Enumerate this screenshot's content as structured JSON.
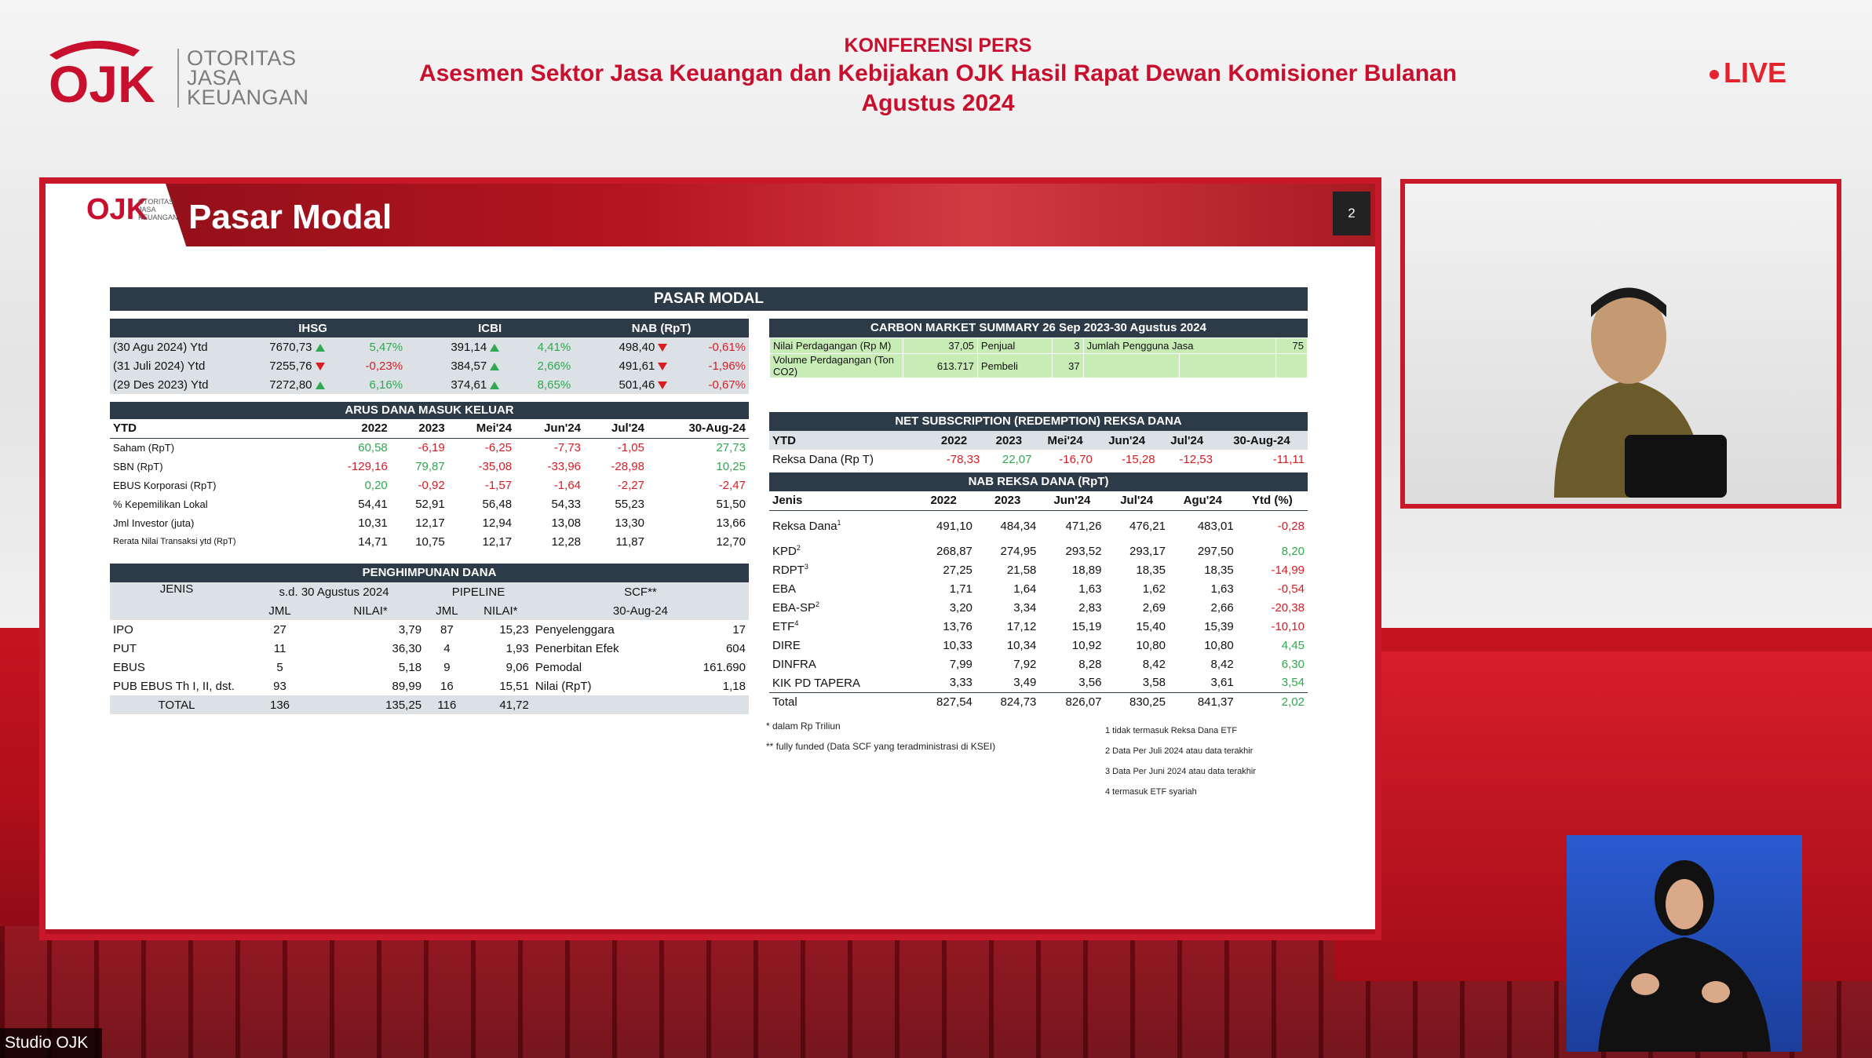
{
  "logo": {
    "mark": "OJK",
    "line1": "OTORITAS",
    "line2": "JASA",
    "line3": "KEUANGAN"
  },
  "header": {
    "title": "KONFERENSI PERS",
    "subtitle1": "Asesmen Sektor Jasa Keuangan dan Kebijakan OJK Hasil Rapat Dewan Komisioner Bulanan",
    "subtitle2": "Agustus 2024"
  },
  "live": "LIVE",
  "studio": "Studio OJK",
  "slide": {
    "title": "Pasar Modal",
    "page": "2",
    "mini_logo": "OJK",
    "mini_sub": "OTORITAS JASA KEUANGAN",
    "banner": "PASAR MODAL",
    "market": {
      "headers": [
        "IHSG",
        "ICBI",
        "NAB (RpT)"
      ],
      "rows": [
        {
          "label": "(30 Agu 2024) Ytd",
          "ihsg": "7670,73",
          "ihsg_pct": "5,47%",
          "ihsg_dir": "up",
          "icbi": "391,14",
          "icbi_pct": "4,41%",
          "icbi_dir": "up",
          "nab": "498,40",
          "nab_pct": "-0,61%",
          "nab_dir": "down"
        },
        {
          "label": "(31 Juli 2024) Ytd",
          "ihsg": "7255,76",
          "ihsg_pct": "-0,23%",
          "ihsg_dir": "down",
          "icbi": "384,57",
          "icbi_pct": "2,66%",
          "icbi_dir": "up",
          "nab": "491,61",
          "nab_pct": "-1,96%",
          "nab_dir": "down"
        },
        {
          "label": "(29 Des 2023) Ytd",
          "ihsg": "7272,80",
          "ihsg_pct": "6,16%",
          "ihsg_dir": "up",
          "icbi": "374,61",
          "icbi_pct": "8,65%",
          "icbi_dir": "up",
          "nab": "501,46",
          "nab_pct": "-0,67%",
          "nab_dir": "down"
        }
      ]
    },
    "arus": {
      "title": "ARUS DANA MASUK KELUAR",
      "cols": [
        "YTD",
        "2022",
        "2023",
        "Mei'24",
        "Jun'24",
        "Jul'24",
        "30-Aug-24"
      ],
      "rows": [
        {
          "label": "Saham (RpT)",
          "v": [
            "60,58",
            "-6,19",
            "-6,25",
            "-7,73",
            "-1,05",
            "27,73"
          ],
          "cls": [
            "g",
            "rd",
            "rd",
            "rd",
            "rd",
            "g"
          ]
        },
        {
          "label": "SBN (RpT)",
          "v": [
            "-129,16",
            "79,87",
            "-35,08",
            "-33,96",
            "-28,98",
            "10,25"
          ],
          "cls": [
            "rd",
            "g",
            "rd",
            "rd",
            "rd",
            "g"
          ]
        },
        {
          "label": "EBUS Korporasi (RpT)",
          "v": [
            "0,20",
            "-0,92",
            "-1,57",
            "-1,64",
            "-2,27",
            "-2,47"
          ],
          "cls": [
            "g",
            "rd",
            "rd",
            "rd",
            "rd",
            "rd"
          ]
        },
        {
          "label": "% Kepemilikan Lokal",
          "v": [
            "54,41",
            "52,91",
            "56,48",
            "54,33",
            "55,23",
            "51,50"
          ],
          "cls": [
            "",
            "",
            "",
            "",
            "",
            ""
          ]
        },
        {
          "label": "Jml Investor (juta)",
          "v": [
            "10,31",
            "12,17",
            "12,94",
            "13,08",
            "13,30",
            "13,66"
          ],
          "cls": [
            "",
            "",
            "",
            "",
            "",
            ""
          ]
        },
        {
          "label": "Rerata Nilai Transaksi ytd (RpT)",
          "v": [
            "14,71",
            "10,75",
            "12,17",
            "12,28",
            "11,87",
            "12,70"
          ],
          "cls": [
            "",
            "",
            "",
            "",
            "",
            ""
          ]
        }
      ]
    },
    "penghimpunan": {
      "title": "PENGHIMPUNAN DANA",
      "col_jenis": "JENIS",
      "col_sd": "s.d. 30 Agustus 2024",
      "col_pipe": "PIPELINE",
      "col_scf": "SCF**",
      "sub": [
        "JML",
        "NILAI*",
        "JML",
        "NILAI*",
        "30-Aug-24"
      ],
      "rows": [
        {
          "jenis": "IPO",
          "jml": "27",
          "nilai": "3,79",
          "pjml": "87",
          "pnilai": "15,23",
          "scf_l": "Penyelenggara",
          "scf_v": "17"
        },
        {
          "jenis": "PUT",
          "jml": "11",
          "nilai": "36,30",
          "pjml": "4",
          "pnilai": "1,93",
          "scf_l": "Penerbitan Efek",
          "scf_v": "604"
        },
        {
          "jenis": "EBUS",
          "jml": "5",
          "nilai": "5,18",
          "pjml": "9",
          "pnilai": "9,06",
          "scf_l": "Pemodal",
          "scf_v": "161.690"
        },
        {
          "jenis": "PUB EBUS Th I, II, dst.",
          "jml": "93",
          "nilai": "89,99",
          "pjml": "16",
          "pnilai": "15,51",
          "scf_l": "Nilai (RpT)",
          "scf_v": "1,18"
        }
      ],
      "total": {
        "jenis": "TOTAL",
        "jml": "136",
        "nilai": "135,25",
        "pjml": "116",
        "pnilai": "41,72"
      }
    },
    "carbon": {
      "title": "CARBON MARKET SUMMARY 26 Sep 2023-30 Agustus 2024",
      "r1": {
        "a": "Nilai Perdagangan (Rp M)",
        "b": "37,05",
        "c": "Penjual",
        "d": "3",
        "e": "Jumlah Pengguna Jasa",
        "f": "75"
      },
      "r2": {
        "a": "Volume Perdagangan (Ton CO2)",
        "b": "613.717",
        "c": "Pembeli",
        "d": "37"
      }
    },
    "netsub": {
      "title": "NET SUBSCRIPTION (REDEMPTION) REKSA DANA",
      "cols": [
        "YTD",
        "2022",
        "2023",
        "Mei'24",
        "Jun'24",
        "Jul'24",
        "30-Aug-24"
      ],
      "row": {
        "label": "Reksa Dana (Rp T)",
        "v": [
          "-78,33",
          "22,07",
          "-16,70",
          "-15,28",
          "-12,53",
          "-11,11"
        ],
        "cls": [
          "rd",
          "g",
          "rd",
          "rd",
          "rd",
          "rd"
        ]
      }
    },
    "nab": {
      "title": "NAB REKSA DANA (RpT)",
      "cols": [
        "Jenis",
        "2022",
        "2023",
        "Jun'24",
        "Jul'24",
        "Agu'24",
        "Ytd (%)"
      ],
      "rows": [
        {
          "label": "Reksa Dana",
          "sup": "1",
          "v": [
            "491,10",
            "484,34",
            "471,26",
            "476,21",
            "483,01",
            "-0,28"
          ],
          "cls": "rd"
        },
        {
          "label": "KPD",
          "sup": "2",
          "v": [
            "268,87",
            "274,95",
            "293,52",
            "293,17",
            "297,50",
            "8,20"
          ],
          "cls": "g"
        },
        {
          "label": "RDPT",
          "sup": "3",
          "v": [
            "27,25",
            "21,58",
            "18,89",
            "18,35",
            "18,35",
            "-14,99"
          ],
          "cls": "rd"
        },
        {
          "label": "EBA",
          "sup": "",
          "v": [
            "1,71",
            "1,64",
            "1,63",
            "1,62",
            "1,63",
            "-0,54"
          ],
          "cls": "rd"
        },
        {
          "label": "EBA-SP",
          "sup": "2",
          "v": [
            "3,20",
            "3,34",
            "2,83",
            "2,69",
            "2,66",
            "-20,38"
          ],
          "cls": "rd"
        },
        {
          "label": "ETF",
          "sup": "4",
          "v": [
            "13,76",
            "17,12",
            "15,19",
            "15,40",
            "15,39",
            "-10,10"
          ],
          "cls": "rd"
        },
        {
          "label": "DIRE",
          "sup": "",
          "v": [
            "10,33",
            "10,34",
            "10,92",
            "10,80",
            "10,80",
            "4,45"
          ],
          "cls": "g"
        },
        {
          "label": "DINFRA",
          "sup": "",
          "v": [
            "7,99",
            "7,92",
            "8,28",
            "8,42",
            "8,42",
            "6,30"
          ],
          "cls": "g"
        },
        {
          "label": "KIK PD TAPERA",
          "sup": "",
          "v": [
            "3,33",
            "3,49",
            "3,56",
            "3,58",
            "3,61",
            "3,54"
          ],
          "cls": "g"
        }
      ],
      "total": {
        "label": "Total",
        "v": [
          "827,54",
          "824,73",
          "826,07",
          "830,25",
          "841,37",
          "2,02"
        ],
        "cls": "g"
      }
    },
    "notes_left": [
      "* dalam Rp Triliun",
      "** fully funded (Data SCF yang teradministrasi di KSEI)"
    ],
    "notes_right": [
      "1 tidak termasuk Reksa Dana ETF",
      "2 Data Per Juli 2024 atau data terakhir",
      "3 Data Per Juni 2024 atau data terakhir",
      "4 termasuk ETF syariah"
    ]
  }
}
